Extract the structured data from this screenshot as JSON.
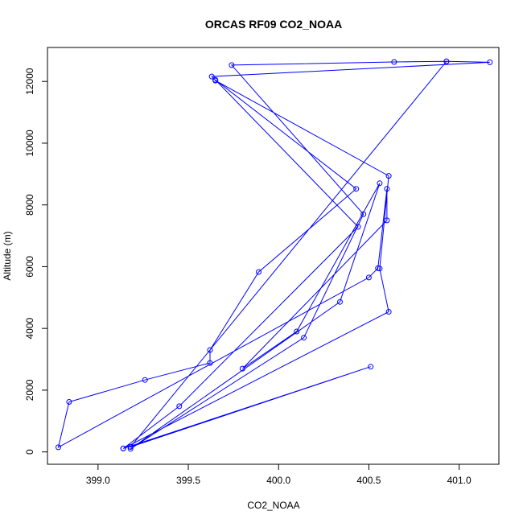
{
  "chart_data": {
    "type": "line",
    "title": "ORCAS RF09 CO2_NOAA",
    "xlabel": "CO2_NOAA",
    "ylabel": "Altitude (m)",
    "xlim": [
      398.72,
      401.22
    ],
    "ylim": [
      -400,
      13100
    ],
    "xticks": [
      399.0,
      399.5,
      400.0,
      400.5,
      401.0
    ],
    "xtick_labels": [
      "399.0",
      "399.5",
      "400.0",
      "400.5",
      "401.0"
    ],
    "yticks": [
      0,
      2000,
      4000,
      6000,
      8000,
      10000,
      12000
    ],
    "ytick_labels": [
      "0",
      "2000",
      "4000",
      "6000",
      "8000",
      "10000",
      "12000"
    ],
    "grid": false,
    "marker": "open-circle",
    "color": "#0000ff",
    "points": [
      {
        "x": 400.93,
        "y": 12650
      },
      {
        "x": 401.17,
        "y": 12620
      },
      {
        "x": 399.63,
        "y": 12160
      },
      {
        "x": 399.65,
        "y": 12030
      },
      {
        "x": 400.61,
        "y": 8940
      },
      {
        "x": 400.56,
        "y": 5940
      },
      {
        "x": 400.61,
        "y": 4540
      },
      {
        "x": 399.14,
        "y": 110
      },
      {
        "x": 399.45,
        "y": 1480
      },
      {
        "x": 400.44,
        "y": 7290
      },
      {
        "x": 399.65,
        "y": 12050
      },
      {
        "x": 400.43,
        "y": 8520
      },
      {
        "x": 399.89,
        "y": 5830
      },
      {
        "x": 399.62,
        "y": 3300
      },
      {
        "x": 399.62,
        "y": 2880
      },
      {
        "x": 399.26,
        "y": 2330
      },
      {
        "x": 398.84,
        "y": 1620
      },
      {
        "x": 398.78,
        "y": 150
      },
      {
        "x": 400.5,
        "y": 5650
      },
      {
        "x": 400.55,
        "y": 5950
      },
      {
        "x": 400.6,
        "y": 8520
      },
      {
        "x": 400.6,
        "y": 7500
      },
      {
        "x": 399.8,
        "y": 2700
      },
      {
        "x": 400.1,
        "y": 3900
      },
      {
        "x": 400.56,
        "y": 8700
      },
      {
        "x": 400.34,
        "y": 4860
      },
      {
        "x": 399.18,
        "y": 100
      },
      {
        "x": 400.14,
        "y": 3700
      },
      {
        "x": 400.47,
        "y": 7700
      },
      {
        "x": 399.74,
        "y": 12530
      },
      {
        "x": 400.64,
        "y": 12630
      },
      {
        "x": 400.93,
        "y": 12650
      },
      {
        "x": 399.18,
        "y": 160
      },
      {
        "x": 400.51,
        "y": 2760
      },
      {
        "x": 399.14,
        "y": 110
      }
    ]
  }
}
